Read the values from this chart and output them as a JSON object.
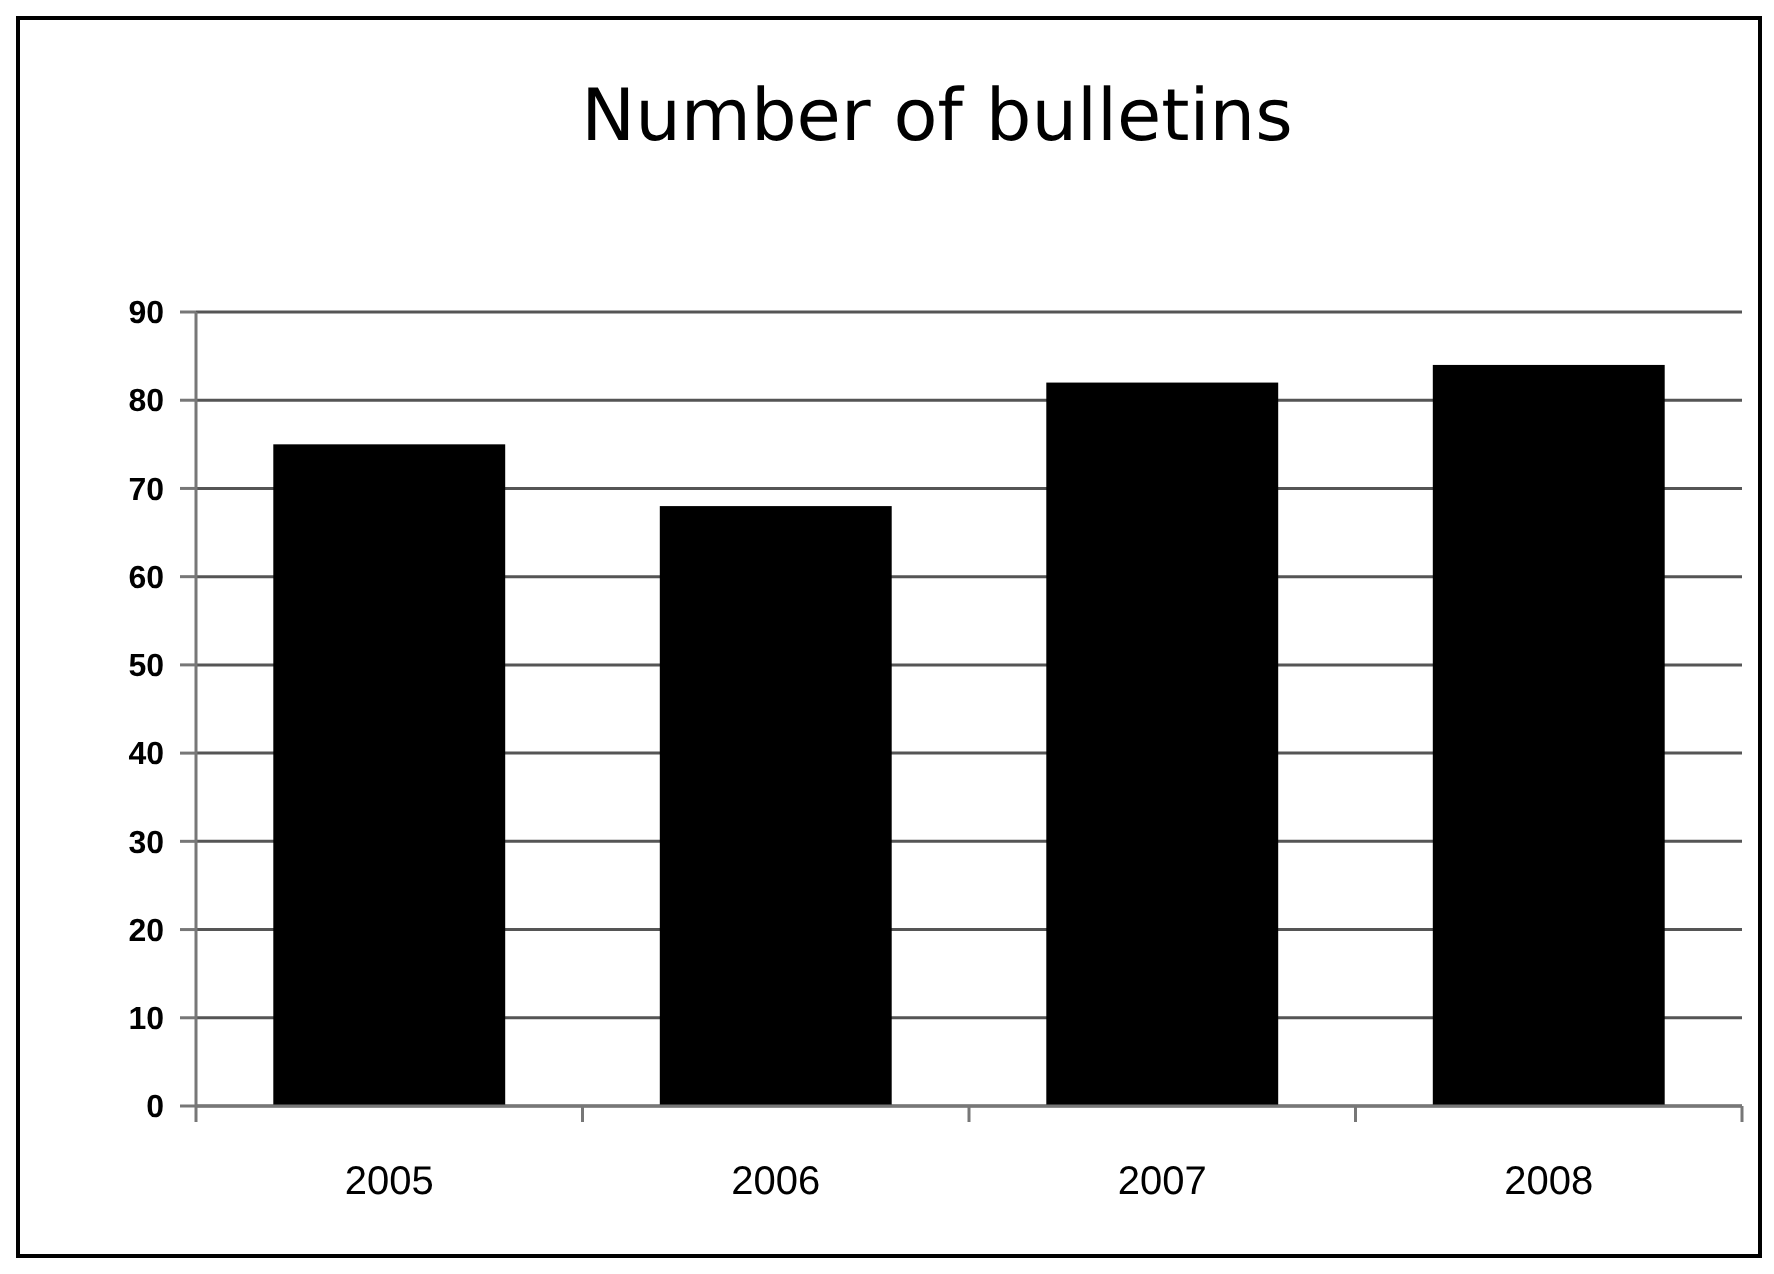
{
  "chart_data": {
    "type": "bar",
    "title": "Number of bulletins",
    "categories": [
      "2005",
      "2006",
      "2007",
      "2008"
    ],
    "values": [
      75,
      68,
      82,
      84
    ],
    "color": "#000000",
    "ylim": [
      0,
      90
    ],
    "yticks": [
      0,
      10,
      20,
      30,
      40,
      50,
      60,
      70,
      80,
      90
    ],
    "grid": "y"
  }
}
